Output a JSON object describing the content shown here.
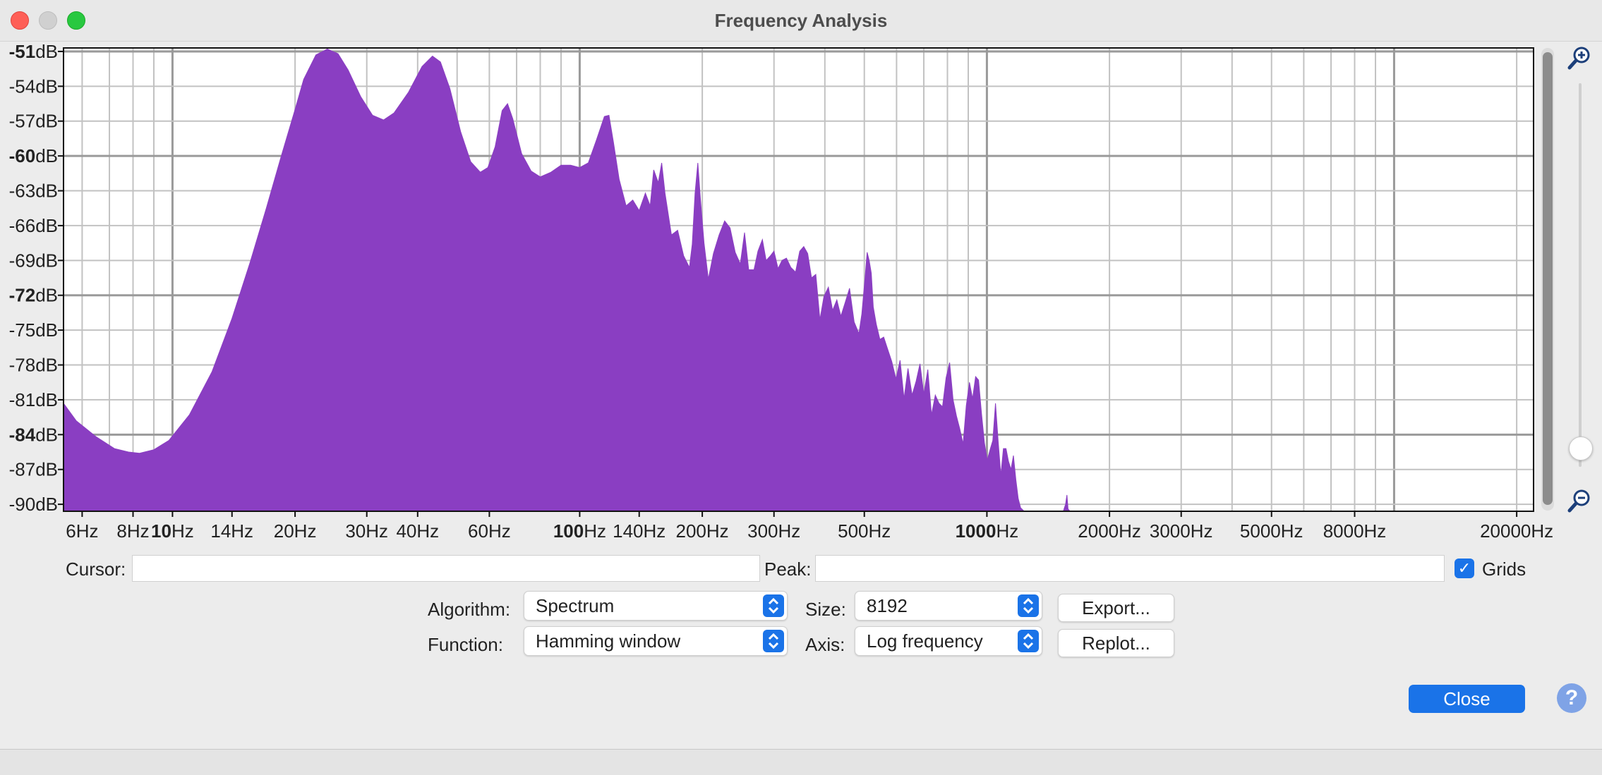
{
  "window": {
    "title": "Frequency Analysis"
  },
  "chart_data": {
    "type": "area",
    "x_scale": "log",
    "y_ticks": [
      {
        "value": -51,
        "num": "-51",
        "unit": "dB",
        "bold": true
      },
      {
        "value": -54,
        "num": "-54",
        "unit": "dB",
        "bold": false
      },
      {
        "value": -57,
        "num": "-57",
        "unit": "dB",
        "bold": false
      },
      {
        "value": -60,
        "num": "-60",
        "unit": "dB",
        "bold": true
      },
      {
        "value": -63,
        "num": "-63",
        "unit": "dB",
        "bold": false
      },
      {
        "value": -66,
        "num": "-66",
        "unit": "dB",
        "bold": false
      },
      {
        "value": -69,
        "num": "-69",
        "unit": "dB",
        "bold": false
      },
      {
        "value": -72,
        "num": "-72",
        "unit": "dB",
        "bold": true
      },
      {
        "value": -75,
        "num": "-75",
        "unit": "dB",
        "bold": false
      },
      {
        "value": -78,
        "num": "-78",
        "unit": "dB",
        "bold": false
      },
      {
        "value": -81,
        "num": "-81",
        "unit": "dB",
        "bold": false
      },
      {
        "value": -84,
        "num": "-84",
        "unit": "dB",
        "bold": true
      },
      {
        "value": -87,
        "num": "-87",
        "unit": "dB",
        "bold": false
      },
      {
        "value": -90,
        "num": "-90",
        "unit": "dB",
        "bold": false
      }
    ],
    "x_ticks": [
      {
        "value": 6,
        "num": "6",
        "unit": "Hz",
        "bold": false
      },
      {
        "value": 8,
        "num": "8",
        "unit": "Hz",
        "bold": false
      },
      {
        "value": 10,
        "num": "10",
        "unit": "Hz",
        "bold": true
      },
      {
        "value": 14,
        "num": "14",
        "unit": "Hz",
        "bold": false
      },
      {
        "value": 20,
        "num": "20",
        "unit": "Hz",
        "bold": false
      },
      {
        "value": 30,
        "num": "30",
        "unit": "Hz",
        "bold": false
      },
      {
        "value": 40,
        "num": "40",
        "unit": "Hz",
        "bold": false
      },
      {
        "value": 60,
        "num": "60",
        "unit": "Hz",
        "bold": false
      },
      {
        "value": 100,
        "num": "100",
        "unit": "Hz",
        "bold": true
      },
      {
        "value": 140,
        "num": "140",
        "unit": "Hz",
        "bold": false
      },
      {
        "value": 200,
        "num": "200",
        "unit": "Hz",
        "bold": false
      },
      {
        "value": 300,
        "num": "300",
        "unit": "Hz",
        "bold": false
      },
      {
        "value": 500,
        "num": "500",
        "unit": "Hz",
        "bold": false
      },
      {
        "value": 1000,
        "num": "1000",
        "unit": "Hz",
        "bold": true
      },
      {
        "value": 2000,
        "num": "2000",
        "unit": "Hz",
        "bold": false
      },
      {
        "value": 3000,
        "num": "3000",
        "unit": "Hz",
        "bold": false
      },
      {
        "value": 5000,
        "num": "5000",
        "unit": "Hz",
        "bold": false
      },
      {
        "value": 8000,
        "num": "8000",
        "unit": "Hz",
        "bold": false
      },
      {
        "value": 20000,
        "num": "20000",
        "unit": "Hz",
        "bold": false
      }
    ],
    "x_range": [
      5.4,
      22000
    ],
    "y_range": [
      -90.6,
      -50.7
    ],
    "grid": true,
    "fill_color": "#8a3ec2",
    "series": [
      {
        "points": [
          [
            5.4,
            -81.3
          ],
          [
            5.8,
            -82.8
          ],
          [
            6.5,
            -84.2
          ],
          [
            7.2,
            -85.2
          ],
          [
            7.8,
            -85.5
          ],
          [
            8.3,
            -85.6
          ],
          [
            9.0,
            -85.3
          ],
          [
            9.8,
            -84.5
          ],
          [
            11.0,
            -82.3
          ],
          [
            12.5,
            -78.6
          ],
          [
            14.0,
            -74.0
          ],
          [
            15.5,
            -69.2
          ],
          [
            17.0,
            -64.5
          ],
          [
            18.5,
            -60.0
          ],
          [
            20.0,
            -56.0
          ],
          [
            21.0,
            -53.4
          ],
          [
            22.5,
            -51.3
          ],
          [
            24.0,
            -50.8
          ],
          [
            25.5,
            -51.2
          ],
          [
            27.0,
            -52.6
          ],
          [
            29.0,
            -54.9
          ],
          [
            31.0,
            -56.5
          ],
          [
            33.0,
            -56.9
          ],
          [
            35.0,
            -56.3
          ],
          [
            38.0,
            -54.5
          ],
          [
            41.0,
            -52.3
          ],
          [
            43.5,
            -51.4
          ],
          [
            45.5,
            -51.9
          ],
          [
            48.0,
            -54.2
          ],
          [
            51.0,
            -57.9
          ],
          [
            54.0,
            -60.5
          ],
          [
            57.0,
            -61.4
          ],
          [
            59.5,
            -61.0
          ],
          [
            62.0,
            -59.2
          ],
          [
            64.5,
            -56.1
          ],
          [
            66.5,
            -55.5
          ],
          [
            68.5,
            -56.8
          ],
          [
            72.0,
            -59.8
          ],
          [
            76.0,
            -61.3
          ],
          [
            80.0,
            -61.8
          ],
          [
            85.0,
            -61.4
          ],
          [
            90.0,
            -60.8
          ],
          [
            95.0,
            -60.8
          ],
          [
            100.0,
            -61.0
          ],
          [
            105.0,
            -60.6
          ],
          [
            110.0,
            -58.6
          ],
          [
            115.0,
            -56.6
          ],
          [
            118.0,
            -56.5
          ],
          [
            121.0,
            -58.8
          ],
          [
            125.0,
            -62.0
          ],
          [
            130.0,
            -64.3
          ],
          [
            135.0,
            -63.8
          ],
          [
            140.0,
            -64.7
          ],
          [
            145.0,
            -63.2
          ],
          [
            149.0,
            -64.3
          ],
          [
            152.0,
            -61.2
          ],
          [
            156.0,
            -62.3
          ],
          [
            159.0,
            -60.6
          ],
          [
            162.0,
            -63.2
          ],
          [
            168.0,
            -66.8
          ],
          [
            174.0,
            -66.4
          ],
          [
            180.0,
            -68.6
          ],
          [
            186.0,
            -69.6
          ],
          [
            189.0,
            -67.6
          ],
          [
            192.0,
            -63.2
          ],
          [
            195.0,
            -60.6
          ],
          [
            198.0,
            -63.8
          ],
          [
            202.0,
            -67.5
          ],
          [
            207.0,
            -70.6
          ],
          [
            213.0,
            -68.4
          ],
          [
            220.0,
            -66.8
          ],
          [
            227.0,
            -65.6
          ],
          [
            234.0,
            -66.2
          ],
          [
            241.0,
            -68.3
          ],
          [
            248.0,
            -69.3
          ],
          [
            254.0,
            -66.6
          ],
          [
            260.0,
            -69.8
          ],
          [
            268.0,
            -69.8
          ],
          [
            274.0,
            -68.2
          ],
          [
            281.0,
            -67.2
          ],
          [
            287.0,
            -69.0
          ],
          [
            294.0,
            -68.6
          ],
          [
            300.0,
            -68.2
          ],
          [
            307.0,
            -69.7
          ],
          [
            314.0,
            -69.0
          ],
          [
            322.0,
            -68.8
          ],
          [
            330.0,
            -69.6
          ],
          [
            339.0,
            -70.0
          ],
          [
            347.0,
            -68.2
          ],
          [
            355.0,
            -67.8
          ],
          [
            363.0,
            -68.4
          ],
          [
            371.0,
            -70.5
          ],
          [
            380.0,
            -70.2
          ],
          [
            389.0,
            -74.1
          ],
          [
            398.0,
            -72.1
          ],
          [
            408.0,
            -71.3
          ],
          [
            418.0,
            -73.3
          ],
          [
            428.0,
            -72.4
          ],
          [
            438.0,
            -73.8
          ],
          [
            448.0,
            -72.7
          ],
          [
            460.0,
            -71.4
          ],
          [
            472.0,
            -74.3
          ],
          [
            485.0,
            -75.3
          ],
          [
            493.0,
            -73.6
          ],
          [
            502.0,
            -70.5
          ],
          [
            508.0,
            -68.3
          ],
          [
            514.0,
            -69.0
          ],
          [
            520.0,
            -70.1
          ],
          [
            526.0,
            -73.0
          ],
          [
            535.0,
            -74.5
          ],
          [
            546.0,
            -75.8
          ],
          [
            558.0,
            -75.6
          ],
          [
            570.0,
            -76.6
          ],
          [
            584.0,
            -77.7
          ],
          [
            598.0,
            -79.2
          ],
          [
            612.0,
            -77.6
          ],
          [
            626.0,
            -80.9
          ],
          [
            640.0,
            -78.3
          ],
          [
            655.0,
            -80.6
          ],
          [
            670.0,
            -79.4
          ],
          [
            685.0,
            -77.9
          ],
          [
            700.0,
            -80.5
          ],
          [
            716.0,
            -78.4
          ],
          [
            731.0,
            -82.3
          ],
          [
            747.0,
            -80.6
          ],
          [
            763.0,
            -81.3
          ],
          [
            778.0,
            -81.6
          ],
          [
            794.0,
            -79.1
          ],
          [
            810.0,
            -77.8
          ],
          [
            826.0,
            -81.0
          ],
          [
            842.0,
            -82.4
          ],
          [
            858.0,
            -83.5
          ],
          [
            874.0,
            -84.8
          ],
          [
            890.0,
            -81.5
          ],
          [
            906.0,
            -79.5
          ],
          [
            922.0,
            -80.9
          ],
          [
            938.0,
            -79.0
          ],
          [
            954.0,
            -79.3
          ],
          [
            970.0,
            -82.2
          ],
          [
            986.0,
            -84.7
          ],
          [
            1002.0,
            -86.2
          ],
          [
            1018.0,
            -85.3
          ],
          [
            1034.0,
            -84.5
          ],
          [
            1050.0,
            -81.3
          ],
          [
            1066.0,
            -84.6
          ],
          [
            1082.0,
            -87.5
          ],
          [
            1098.0,
            -85.2
          ],
          [
            1114.0,
            -85.2
          ],
          [
            1130.0,
            -86.3
          ],
          [
            1146.0,
            -87.0
          ],
          [
            1162.0,
            -85.8
          ],
          [
            1178.0,
            -87.9
          ],
          [
            1194.0,
            -89.5
          ],
          [
            1210.0,
            -90.3
          ],
          [
            1235.0,
            -90.6
          ],
          [
            1540.0,
            -90.6
          ],
          [
            1560.0,
            -90.0
          ],
          [
            1572.0,
            -89.2
          ],
          [
            1582.0,
            -90.4
          ],
          [
            1600.0,
            -90.6
          ],
          [
            22000.0,
            -90.6
          ]
        ]
      }
    ]
  },
  "controls": {
    "cursor_label": "Cursor:",
    "cursor_value": "",
    "peak_label": "Peak:",
    "peak_value": "",
    "grids_label": "Grids",
    "grids_checked": true,
    "algorithm_label": "Algorithm:",
    "algorithm_value": "Spectrum",
    "size_label": "Size:",
    "size_value": "8192",
    "function_label": "Function:",
    "function_value": "Hamming window",
    "axis_label": "Axis:",
    "axis_value": "Log frequency",
    "export_label": "Export...",
    "replot_label": "Replot...",
    "close_label": "Close",
    "help_label": "?"
  },
  "zoom": {
    "zoom_in_icon": "zoom-in-icon",
    "zoom_out_icon": "zoom-out-icon",
    "level": 0.05
  }
}
